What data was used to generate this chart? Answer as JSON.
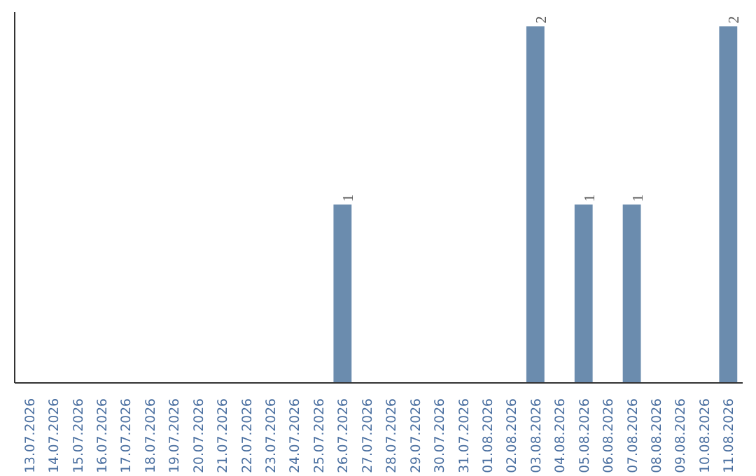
{
  "chart_data": {
    "type": "bar",
    "categories": [
      "13.07.2026",
      "14.07.2026",
      "15.07.2026",
      "16.07.2026",
      "17.07.2026",
      "18.07.2026",
      "19.07.2026",
      "20.07.2026",
      "21.07.2026",
      "22.07.2026",
      "23.07.2026",
      "24.07.2026",
      "25.07.2026",
      "26.07.2026",
      "27.07.2026",
      "28.07.2026",
      "29.07.2026",
      "30.07.2026",
      "31.07.2026",
      "01.08.2026",
      "02.08.2026",
      "03.08.2026",
      "04.08.2026",
      "05.08.2026",
      "06.08.2026",
      "07.08.2026",
      "08.08.2026",
      "09.08.2026",
      "10.08.2026",
      "11.08.2026"
    ],
    "values": [
      null,
      null,
      null,
      null,
      null,
      null,
      null,
      null,
      null,
      null,
      null,
      null,
      null,
      1,
      null,
      null,
      null,
      null,
      null,
      null,
      null,
      2,
      null,
      1,
      null,
      1,
      null,
      null,
      null,
      2
    ],
    "value_labels": [
      null,
      null,
      null,
      null,
      null,
      null,
      null,
      null,
      null,
      null,
      null,
      null,
      null,
      "1",
      null,
      null,
      null,
      null,
      null,
      null,
      null,
      "2",
      null,
      "1",
      null,
      "1",
      null,
      null,
      null,
      "2"
    ],
    "color": "#6b8cae",
    "tick_labels": "x",
    "grid": false
  }
}
